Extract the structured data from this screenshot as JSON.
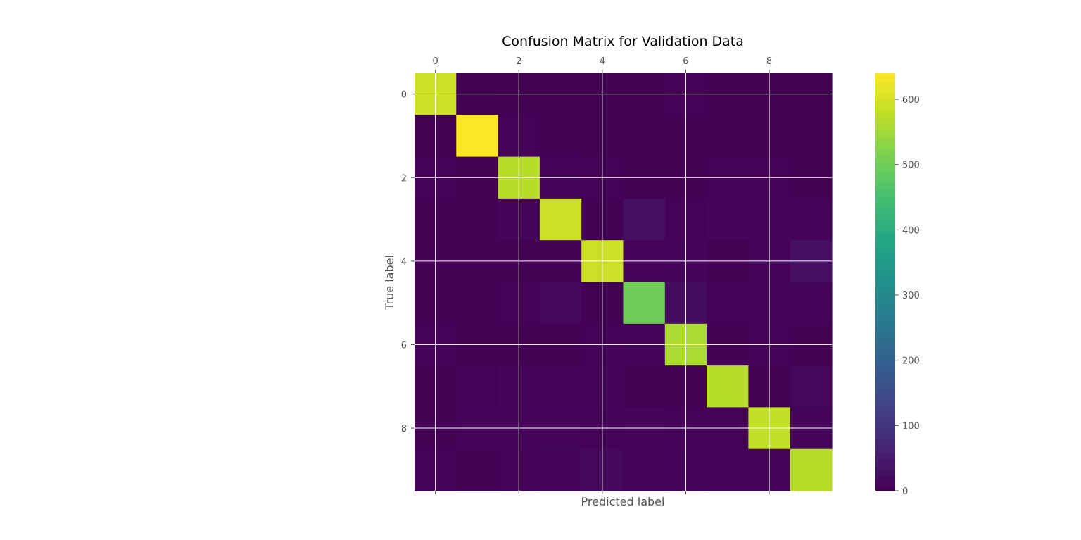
{
  "chart_data": {
    "type": "heatmap",
    "title": "Confusion Matrix for Validation Data",
    "xlabel": "Predicted label",
    "ylabel": "True label",
    "x_ticks": [
      0,
      2,
      4,
      6,
      8
    ],
    "y_ticks": [
      0,
      2,
      4,
      6,
      8
    ],
    "colormap": "viridis",
    "colorbar": {
      "min": 0,
      "max": 640,
      "ticks": [
        0,
        100,
        200,
        300,
        400,
        500,
        600
      ]
    },
    "grid": true,
    "tick_color": "#555555",
    "matrix": [
      [
        590,
        0,
        2,
        1,
        1,
        2,
        3,
        1,
        2,
        1
      ],
      [
        0,
        640,
        3,
        2,
        1,
        1,
        1,
        1,
        2,
        1
      ],
      [
        3,
        2,
        570,
        5,
        3,
        1,
        2,
        3,
        3,
        1
      ],
      [
        1,
        1,
        8,
        590,
        2,
        25,
        3,
        10,
        8,
        5
      ],
      [
        1,
        2,
        2,
        1,
        590,
        3,
        10,
        2,
        5,
        25
      ],
      [
        2,
        2,
        3,
        12,
        2,
        500,
        20,
        4,
        8,
        6
      ],
      [
        3,
        2,
        2,
        1,
        4,
        8,
        560,
        1,
        5,
        2
      ],
      [
        2,
        4,
        10,
        4,
        5,
        2,
        1,
        570,
        2,
        12
      ],
      [
        2,
        5,
        10,
        10,
        4,
        8,
        4,
        3,
        580,
        6
      ],
      [
        3,
        2,
        3,
        10,
        15,
        4,
        5,
        10,
        5,
        570
      ]
    ]
  }
}
